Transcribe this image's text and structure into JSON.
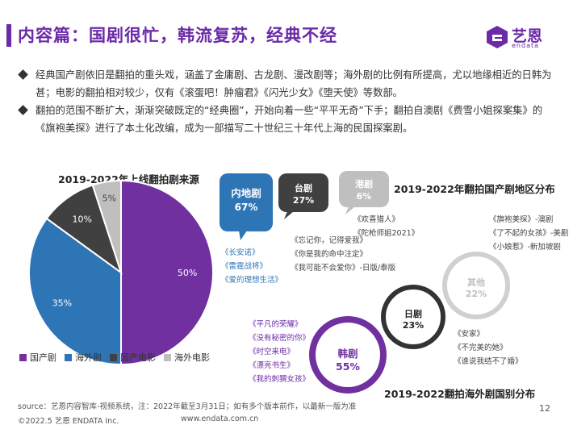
{
  "header": {
    "title": "内容篇：国剧很忙，韩流复苏，经典不经",
    "logo_text": "艺恩",
    "logo_sub": "endata"
  },
  "bullets": [
    "经典国产剧依旧是翻拍的重头戏，涵盖了金庸剧、古龙剧、漫改剧等；海外剧的比例有所提高，尤以地缘相近的日韩为甚；电影的翻拍相对较少，仅有《滚蛋吧！肿瘤君》《闪光少女》《堕天使》等数部。",
    "翻拍的范围不断扩大，渐渐突破既定的“经典圈”，开始向着一些“平平无奇”下手；翻拍自澳剧《费雪小姐探案集》的《旗袍美探》进行了本土化改编，成为一部描写二十世纪三十年代上海的民国探案剧。"
  ],
  "chart_data": [
    {
      "type": "pie",
      "title": "2019-2022年上线翻拍剧来源",
      "categories": [
        "国产剧",
        "海外剧",
        "国产电影",
        "海外电影"
      ],
      "values": [
        50,
        35,
        10,
        5
      ],
      "labels": [
        "50%",
        "35%",
        "10%",
        "5%"
      ],
      "colors": [
        "#7030a0",
        "#2e75b6",
        "#404040",
        "#bfbfbf"
      ],
      "legend": "bottom"
    },
    {
      "type": "bar",
      "title": "2019-2022年翻拍国产剧地区分布",
      "categories": [
        "内地剧",
        "台剧",
        "港剧"
      ],
      "values": [
        67,
        27,
        6
      ],
      "labels": [
        "67%",
        "27%",
        "6%"
      ]
    },
    {
      "type": "bar",
      "title": "2019-2022翻拍海外剧国别分布",
      "categories": [
        "韩剧",
        "日剧",
        "其他"
      ],
      "values": [
        55,
        23,
        22
      ],
      "labels": [
        "55%",
        "23%",
        "22%"
      ]
    }
  ],
  "region": {
    "mainland": {
      "label": "内地剧",
      "pct": "67%",
      "shows": [
        "《长安诺》",
        "《雷霆战将》",
        "《爱的理想生活》"
      ]
    },
    "taiwan": {
      "label": "台剧",
      "pct": "27%",
      "shows": [
        "《忘记你，记得爱我》",
        "《你是我的命中注定》",
        "《我可能不会爱你》-日版/泰版"
      ]
    },
    "hk": {
      "label": "港剧",
      "pct": "6%",
      "shows": [
        "《欢喜猎人》",
        "《陀枪师姐2021》"
      ]
    }
  },
  "country": {
    "korea": {
      "label": "韩剧",
      "pct": "55%",
      "shows": [
        "《平凡的荣耀》",
        "《没有秘密的你》",
        "《时空来电》",
        "《漂亮书生》",
        "《我的刺猬女孩》"
      ]
    },
    "japan": {
      "label": "日剧",
      "pct": "23%",
      "shows": [
        "《安家》",
        "《不完美的她》",
        "《谁说我结不了婚》"
      ]
    },
    "other": {
      "label": "其他",
      "pct": "22%",
      "shows": [
        "《旗袍美探》-澳剧",
        "《了不起的女孩》-美剧",
        "《小娘惹》-新加坡剧"
      ]
    }
  },
  "footer": {
    "source": "source：艺恩内容智库-视频系统，注：2022年截至3月31日；如有多个版本前作，以最新一版为准",
    "copyright": "©2022.5 艺恩 ENDATA Inc.",
    "website": "www.endata.com.cn",
    "page": "12"
  }
}
